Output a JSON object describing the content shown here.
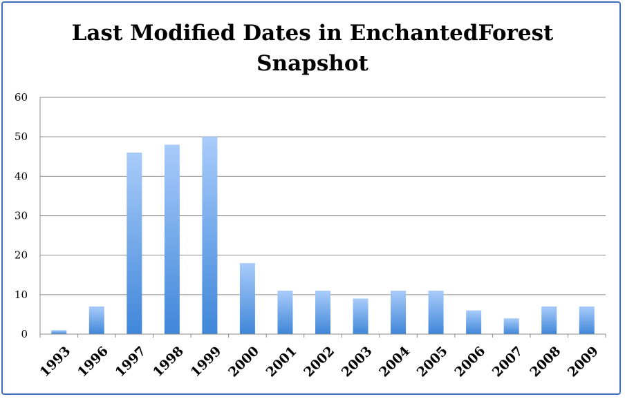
{
  "chart_data": {
    "type": "bar",
    "title_line1": "Last Modified Dates in EnchantedForest",
    "title_line2": "Snapshot",
    "categories": [
      "1993",
      "1996",
      "1997",
      "1998",
      "1999",
      "2000",
      "2001",
      "2002",
      "2003",
      "2004",
      "2005",
      "2006",
      "2007",
      "2008",
      "2009"
    ],
    "values": [
      1,
      7,
      46,
      48,
      50,
      18,
      11,
      11,
      9,
      11,
      11,
      6,
      4,
      7,
      7
    ],
    "ylim": [
      0,
      60
    ],
    "yticks": [
      0,
      10,
      20,
      30,
      40,
      50,
      60
    ],
    "grid": true,
    "legend": "none",
    "colors": {
      "bar_top": "#a9ccfa",
      "bar_bottom": "#3f86d9",
      "border": "#3a6db5",
      "grid": "#888888"
    }
  }
}
